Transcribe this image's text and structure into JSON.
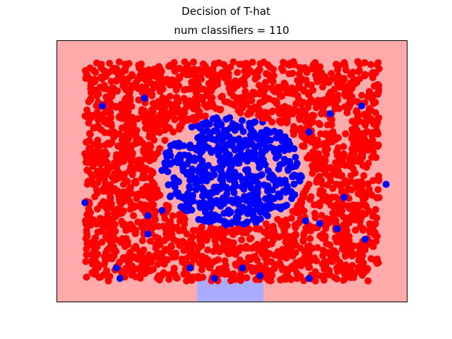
{
  "figure": {
    "suptitle": "Decision of T-hat",
    "title": "num classifiers = 110"
  },
  "chart_data": {
    "type": "scatter",
    "title": "num classifiers = 110",
    "suptitle": "Decision of T-hat",
    "xlabel": "",
    "ylabel": "",
    "xticks": [],
    "yticks": [],
    "xlim": [
      0,
      1
    ],
    "ylim": [
      0,
      1
    ],
    "grid": false,
    "legend": "none",
    "colors": {
      "region_red": "#ffaaaa",
      "region_blue": "#aaaaff",
      "point_red": "#ff0000",
      "point_blue": "#0000ff"
    },
    "decision_regions": [
      {
        "class": "red",
        "x": [
          0,
          1
        ],
        "y": [
          0,
          1
        ]
      },
      {
        "class": "blue",
        "x": [
          0.4,
          0.59
        ],
        "y": [
          0,
          0.09
        ]
      }
    ],
    "series": [
      {
        "class": "red",
        "distribution": "uniform in square with central disk excluded",
        "count": 2200,
        "x_range": [
          0.08,
          0.92
        ],
        "y_range": [
          0.08,
          0.92
        ],
        "excluded_disk": {
          "cx": 0.5,
          "cy": 0.5,
          "r": 0.2
        }
      },
      {
        "class": "blue",
        "distribution": "uniform in central disk",
        "count": 520,
        "disk": {
          "cx": 0.5,
          "cy": 0.5,
          "r": 0.2
        }
      },
      {
        "class": "blue",
        "distribution": "scattered outliers",
        "points": [
          [
            0.08,
            0.38
          ],
          [
            0.25,
            0.78
          ],
          [
            0.13,
            0.75
          ],
          [
            0.18,
            0.09
          ],
          [
            0.26,
            0.26
          ],
          [
            0.26,
            0.33
          ],
          [
            0.38,
            0.13
          ],
          [
            0.45,
            0.09
          ],
          [
            0.58,
            0.1
          ],
          [
            0.72,
            0.09
          ],
          [
            0.71,
            0.31
          ],
          [
            0.75,
            0.3
          ],
          [
            0.8,
            0.28
          ],
          [
            0.88,
            0.24
          ],
          [
            0.78,
            0.72
          ],
          [
            0.87,
            0.75
          ],
          [
            0.94,
            0.45
          ],
          [
            0.72,
            0.65
          ],
          [
            0.82,
            0.4
          ],
          [
            0.53,
            0.13
          ],
          [
            0.3,
            0.35
          ],
          [
            0.17,
            0.13
          ]
        ]
      }
    ]
  }
}
